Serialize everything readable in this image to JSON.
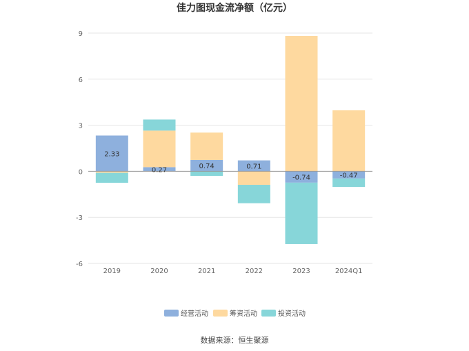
{
  "chart_data": {
    "type": "bar",
    "stacked": true,
    "title": "佳力图现金流净额（亿元）",
    "categories": [
      "2019",
      "2020",
      "2021",
      "2022",
      "2023",
      "2024Q1"
    ],
    "series": [
      {
        "name": "经营活动",
        "color": "#8eb0dd",
        "values": [
          2.33,
          0.27,
          0.74,
          0.71,
          -0.74,
          -0.47
        ]
      },
      {
        "name": "筹资活动",
        "color": "#fed99f",
        "values": [
          -0.1,
          2.38,
          1.78,
          -0.88,
          8.82,
          3.97
        ]
      },
      {
        "name": "投资活动",
        "color": "#87d6d9",
        "values": [
          -0.65,
          0.72,
          -0.3,
          -1.2,
          -4.0,
          -0.55
        ]
      }
    ],
    "data_labels": {
      "series": "经营活动",
      "values": [
        "2.33",
        "0.27",
        "0.74",
        "0.71",
        "-0.74",
        "-0.47"
      ]
    },
    "ylim": [
      -6,
      9
    ],
    "yticks": [
      "9",
      "6",
      "3",
      "0",
      "-3",
      "-6"
    ],
    "ytick_values": [
      9,
      6,
      3,
      0,
      -3,
      -6
    ],
    "grid": true,
    "legend_position": "bottom"
  },
  "source_text": "数据来源：恒生聚源"
}
